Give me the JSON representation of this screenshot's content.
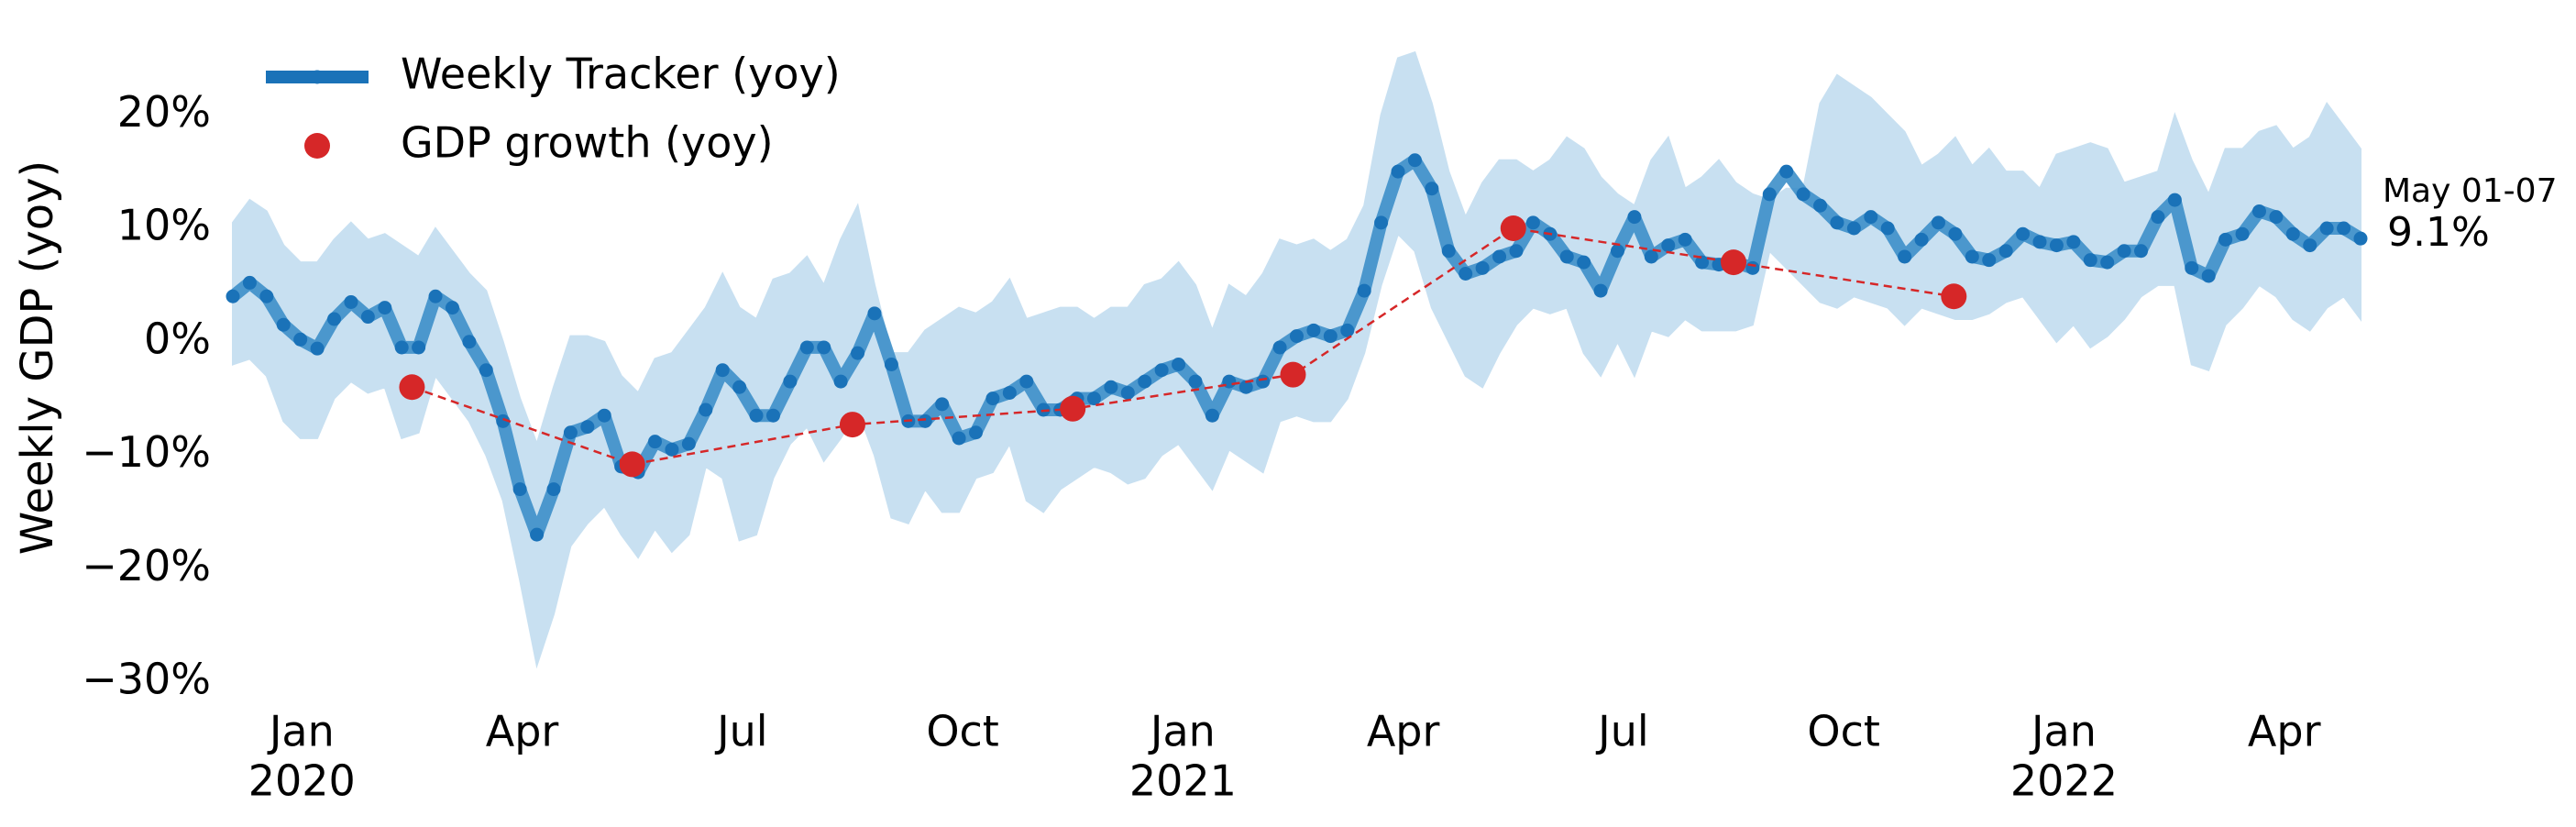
{
  "chart_data": {
    "type": "line",
    "ylabel": "Weekly GDP (yoy)",
    "xlim": [
      -0.94,
      28.04
    ],
    "ylim": [
      -30,
      26
    ],
    "xticks": [
      {
        "value": 0,
        "label": "Jan",
        "year": "2020"
      },
      {
        "value": 3,
        "label": "Apr"
      },
      {
        "value": 6,
        "label": "Jul"
      },
      {
        "value": 9,
        "label": "Oct"
      },
      {
        "value": 12,
        "label": "Jan",
        "year": "2021"
      },
      {
        "value": 15,
        "label": "Apr"
      },
      {
        "value": 18,
        "label": "Jul"
      },
      {
        "value": 21,
        "label": "Oct"
      },
      {
        "value": 24,
        "label": "Jan",
        "year": "2022"
      },
      {
        "value": 27,
        "label": "Apr"
      }
    ],
    "yticks": [
      {
        "value": -30,
        "label": "−30%"
      },
      {
        "value": -20,
        "label": "−20%"
      },
      {
        "value": -10,
        "label": "−10%"
      },
      {
        "value": 0,
        "label": "0%"
      },
      {
        "value": 10,
        "label": "10%"
      },
      {
        "value": 20,
        "label": "20%"
      }
    ],
    "grid": false,
    "legend": "upper left",
    "series": [
      {
        "name": "Weekly Tracker (yoy)",
        "color": "#1a72b8",
        "line_color": "#3d8fc9",
        "band_color": "#c8e0f1",
        "x": [
          -0.94,
          -0.71,
          -0.48,
          -0.25,
          -0.02,
          0.21,
          0.44,
          0.67,
          0.9,
          1.13,
          1.36,
          1.59,
          1.82,
          2.05,
          2.28,
          2.51,
          2.74,
          2.97,
          3.2,
          3.43,
          3.66,
          3.89,
          4.12,
          4.35,
          4.58,
          4.81,
          5.04,
          5.27,
          5.5,
          5.73,
          5.96,
          6.19,
          6.42,
          6.65,
          6.88,
          7.11,
          7.34,
          7.57,
          7.8,
          8.03,
          8.26,
          8.49,
          8.72,
          8.95,
          9.18,
          9.41,
          9.64,
          9.87,
          10.1,
          10.33,
          10.56,
          10.79,
          11.02,
          11.25,
          11.48,
          11.71,
          11.94,
          12.17,
          12.4,
          12.63,
          12.86,
          13.09,
          13.32,
          13.55,
          13.78,
          14.01,
          14.24,
          14.47,
          14.7,
          14.93,
          15.16,
          15.39,
          15.62,
          15.85,
          16.08,
          16.31,
          16.54,
          16.77,
          17.0,
          17.23,
          17.46,
          17.69,
          17.92,
          18.15,
          18.38,
          18.61,
          18.84,
          19.07,
          19.3,
          19.53,
          19.76,
          19.99,
          20.22,
          20.45,
          20.68,
          20.91,
          21.14,
          21.37,
          21.6,
          21.83,
          22.06,
          22.29,
          22.52,
          22.75,
          22.98,
          23.21,
          23.44,
          23.67,
          23.9,
          24.13,
          24.36,
          24.59,
          24.82,
          25.05,
          25.28,
          25.51,
          25.74,
          25.97,
          26.2,
          26.43,
          26.66,
          26.89,
          27.12,
          27.35,
          27.58,
          27.81,
          28.04
        ],
        "values": [
          4,
          5.2,
          4,
          1.5,
          0.2,
          -0.6,
          2,
          3.5,
          2.2,
          3,
          -0.5,
          -0.5,
          4,
          3,
          0,
          -2.5,
          -7,
          -13,
          -17,
          -13,
          -8,
          -7.5,
          -6.5,
          -11,
          -11.5,
          -8.8,
          -9.5,
          -9,
          -6,
          -2.5,
          -4,
          -6.5,
          -6.5,
          -3.5,
          -0.5,
          -0.5,
          -3.5,
          -1,
          2.5,
          -2,
          -7,
          -7,
          -5.5,
          -8.5,
          -8,
          -5,
          -4.5,
          -3.5,
          -6,
          -6,
          -5,
          -5,
          -4,
          -4.5,
          -3.5,
          -2.5,
          -2,
          -3.5,
          -6.5,
          -3.5,
          -4,
          -3.5,
          -0.5,
          0.5,
          1,
          0.5,
          1,
          4.5,
          10.5,
          15,
          16,
          13.5,
          8,
          6,
          6.5,
          7.5,
          8,
          10.5,
          9.5,
          7.5,
          7,
          4.5,
          8,
          11,
          7.5,
          8.5,
          9,
          7,
          6.8,
          7,
          6.5,
          13,
          15,
          13,
          12,
          10.5,
          10,
          11,
          10,
          7.5,
          9,
          10.5,
          9.5,
          7.5,
          7.2,
          8,
          9.5,
          8.8,
          8.5,
          8.8,
          7.2,
          7,
          8,
          8,
          11,
          12.5,
          6.5,
          5.8,
          9,
          9.5,
          11.5,
          11,
          9.5,
          8.5,
          10,
          10,
          9.1
        ],
        "lower": [
          -2,
          -1.5,
          -3,
          -7,
          -8.5,
          -8.5,
          -5,
          -3.5,
          -4.5,
          -4,
          -8.5,
          -8,
          -3,
          -5,
          -7,
          -10,
          -14,
          -21,
          -28.5,
          -24,
          -18,
          -16,
          -14.5,
          -17,
          -19,
          -16.5,
          -18.5,
          -17,
          -11,
          -12,
          -17.5,
          -17,
          -12,
          -9,
          -7.5,
          -10.5,
          -8.5,
          -6,
          -10,
          -15.5,
          -16,
          -13,
          -15,
          -15,
          -12,
          -11.5,
          -9,
          -14,
          -15,
          -13,
          -12,
          -11,
          -11.5,
          -12.5,
          -12,
          -10,
          -9,
          -11,
          -13,
          -9.5,
          -10.5,
          -11.5,
          -7,
          -6.5,
          -7,
          -7,
          -5,
          -1,
          5,
          9.5,
          8,
          3,
          0,
          -3,
          -4,
          -1,
          1.5,
          3,
          2.5,
          3,
          -1,
          -3,
          0,
          -3,
          1,
          0.5,
          2,
          1,
          1,
          1,
          1.5,
          8,
          6.5,
          5,
          3.5,
          3,
          4,
          3.5,
          3,
          1.5,
          3,
          2.5,
          2,
          2,
          2.5,
          3.5,
          4,
          2,
          0,
          1.5,
          -0.5,
          0.5,
          2,
          4,
          5,
          5,
          -2,
          -2.5,
          1.5,
          3,
          5,
          4,
          2,
          1,
          3,
          4,
          2
        ],
        "upper": [
          10.5,
          12.5,
          11.5,
          8.5,
          7,
          7,
          9,
          10.5,
          9,
          9.5,
          8.5,
          7.5,
          10,
          8,
          6,
          4.5,
          0,
          -5,
          -9,
          -4,
          0.5,
          0.5,
          0,
          -3,
          -4.5,
          -1.5,
          -1,
          1,
          3,
          6,
          3,
          2,
          5.5,
          6,
          7.5,
          5,
          9,
          12,
          5,
          -1,
          -1,
          1,
          2,
          3,
          2.5,
          3.5,
          5.5,
          2,
          2.5,
          3,
          3,
          2,
          3,
          3,
          5,
          5.5,
          7,
          5,
          1,
          5,
          4,
          6,
          9,
          8.5,
          9,
          8,
          9,
          12,
          20,
          25,
          25.5,
          21,
          15,
          11,
          14,
          16,
          16,
          15,
          16,
          18,
          17,
          14.5,
          13,
          12,
          16,
          18,
          13.5,
          14.5,
          16,
          14,
          13,
          12.5,
          13.5,
          13.5,
          21,
          23.5,
          22.5,
          21.5,
          20,
          18.5,
          15.5,
          16.5,
          18,
          15.5,
          17,
          15,
          15,
          13.5,
          16.5,
          17,
          17.5,
          17,
          14,
          14.5,
          15,
          20,
          16,
          13,
          17,
          17,
          18.5,
          19,
          17,
          18,
          21,
          19,
          17
        ]
      },
      {
        "name": "GDP growth (yoy)",
        "color": "#d62728",
        "x": [
          1.5,
          4.5,
          7.5,
          10.5,
          13.5,
          16.5,
          19.5,
          22.5
        ],
        "values": [
          -4,
          -10.8,
          -7.3,
          -5.9,
          -2.9,
          10,
          7,
          4
        ]
      }
    ],
    "annotation": {
      "label": "May 01-07",
      "value_label": "9.1%"
    }
  }
}
